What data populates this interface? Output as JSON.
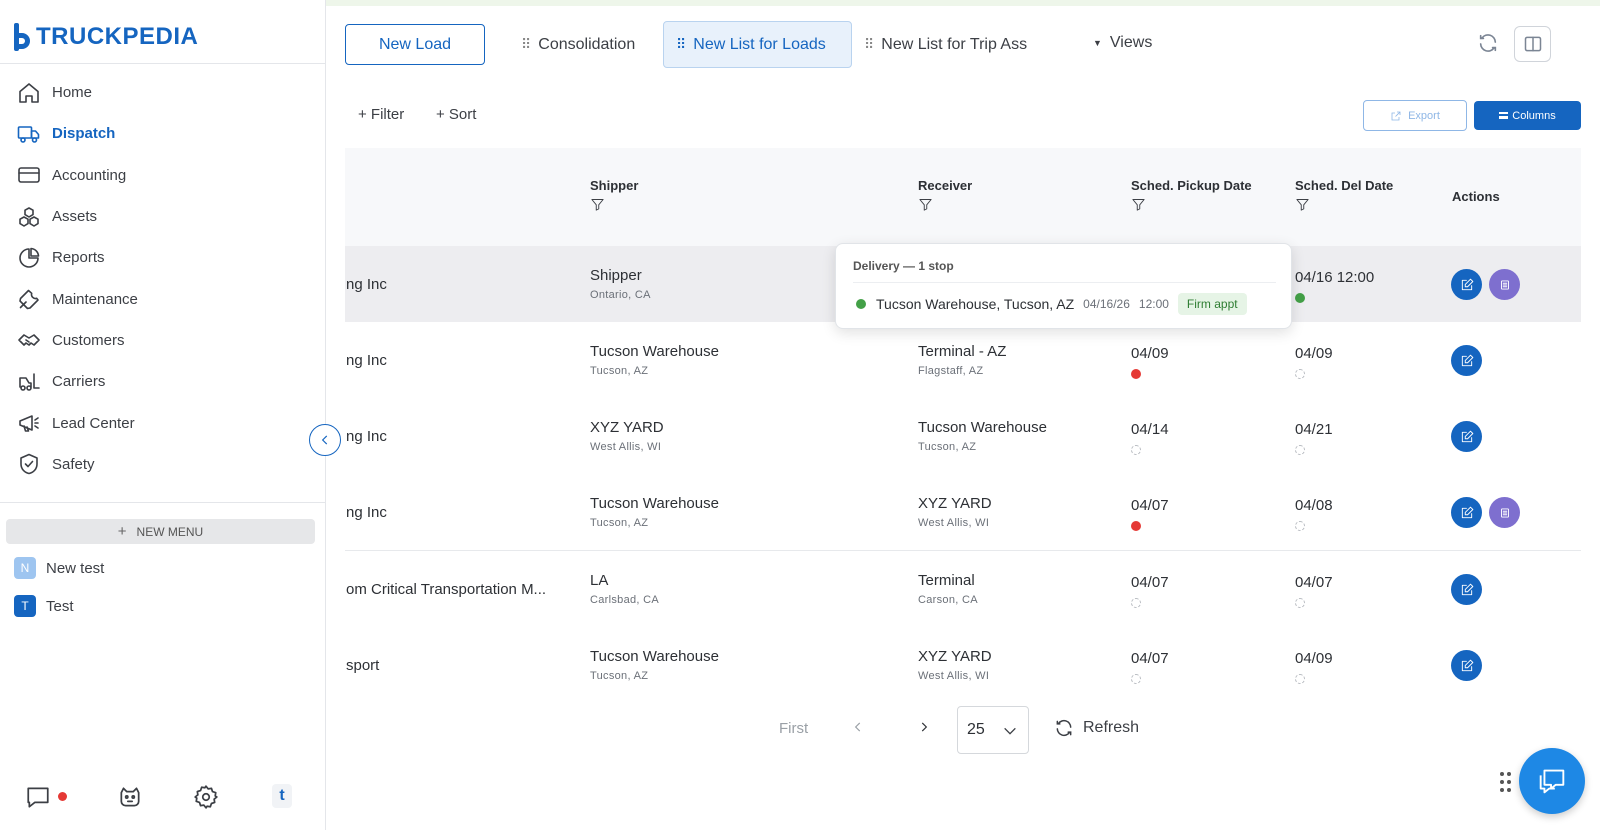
{
  "brand": {
    "name": "TRUCKPEDIA"
  },
  "colors": {
    "accent": "#1565c0",
    "purple": "#7e6fcf",
    "red_status": "#e53935",
    "green_status": "#43a047"
  },
  "sidebar": {
    "items": [
      {
        "label": "Home",
        "icon": "home-icon"
      },
      {
        "label": "Dispatch",
        "icon": "truck-icon",
        "active": true
      },
      {
        "label": "Accounting",
        "icon": "credit-card-icon"
      },
      {
        "label": "Assets",
        "icon": "boxes-icon"
      },
      {
        "label": "Reports",
        "icon": "pie-chart-icon"
      },
      {
        "label": "Maintenance",
        "icon": "wrench-icon"
      },
      {
        "label": "Customers",
        "icon": "handshake-icon"
      },
      {
        "label": "Carriers",
        "icon": "forklift-icon"
      },
      {
        "label": "Lead Center",
        "icon": "megaphone-icon"
      },
      {
        "label": "Safety",
        "icon": "shield-check-icon"
      }
    ],
    "new_menu_label": "NEW MENU",
    "custom_menus": [
      {
        "badge": "N",
        "label": "New test",
        "badge_color": "#9ec5f0"
      },
      {
        "badge": "T",
        "label": "Test",
        "badge_color": "#1565c0"
      }
    ]
  },
  "tabs": {
    "new_load": "New Load",
    "items": [
      {
        "label": "Consolidation"
      },
      {
        "label": "New List for Loads",
        "active": true
      },
      {
        "label": "New List for Trip Ass"
      }
    ],
    "views": "Views"
  },
  "toolbar": {
    "filter": "+ Filter",
    "sort": "+ Sort",
    "export": "Export",
    "columns": "Columns"
  },
  "table": {
    "headers": {
      "shipper": "Shipper",
      "receiver": "Receiver",
      "pickup": "Sched. Pickup Date",
      "delivery": "Sched. Del Date",
      "actions": "Actions"
    },
    "rows": [
      {
        "customer": "ng Inc",
        "shipper": "Shipper",
        "shipper_loc": "Ontario, CA",
        "receiver": "",
        "receiver_loc": "",
        "pickup": "",
        "pickup_status": "",
        "delivery": "04/16 12:00",
        "delivery_status": "green",
        "doc": true
      },
      {
        "customer": "ng Inc",
        "shipper": "Tucson Warehouse",
        "shipper_loc": "Tucson, AZ",
        "receiver": "Terminal - AZ",
        "receiver_loc": "Flagstaff, AZ",
        "pickup": "04/09",
        "pickup_status": "red",
        "delivery": "04/09",
        "delivery_status": "pending",
        "doc": false
      },
      {
        "customer": "ng Inc",
        "shipper": "XYZ YARD",
        "shipper_loc": "West Allis, WI",
        "receiver": "Tucson Warehouse",
        "receiver_loc": "Tucson, AZ",
        "pickup": "04/14",
        "pickup_status": "pending",
        "delivery": "04/21",
        "delivery_status": "pending",
        "doc": false
      },
      {
        "customer": "ng Inc",
        "shipper": "Tucson Warehouse",
        "shipper_loc": "Tucson, AZ",
        "receiver": "XYZ YARD",
        "receiver_loc": "West Allis, WI",
        "pickup": "04/07",
        "pickup_status": "red",
        "delivery": "04/08",
        "delivery_status": "pending",
        "doc": true
      },
      {
        "customer": "om Critical Transportation M...",
        "shipper": "LA",
        "shipper_loc": "Carlsbad, CA",
        "receiver": "Terminal",
        "receiver_loc": "Carson, CA",
        "pickup": "04/07",
        "pickup_status": "pending",
        "delivery": "04/07",
        "delivery_status": "pending",
        "doc": false
      },
      {
        "customer": "sport",
        "shipper": "Tucson Warehouse",
        "shipper_loc": "Tucson, AZ",
        "receiver": "XYZ YARD",
        "receiver_loc": "West Allis, WI",
        "pickup": "04/07",
        "pickup_status": "pending",
        "delivery": "04/09",
        "delivery_status": "pending",
        "doc": false
      }
    ]
  },
  "tooltip": {
    "title": "Delivery — 1 stop",
    "location": "Tucson Warehouse, Tucson, AZ",
    "date": "04/16/26",
    "time": "12:00",
    "badge": "Firm appt"
  },
  "pagination": {
    "first": "First",
    "page_size": "25",
    "refresh": "Refresh"
  }
}
